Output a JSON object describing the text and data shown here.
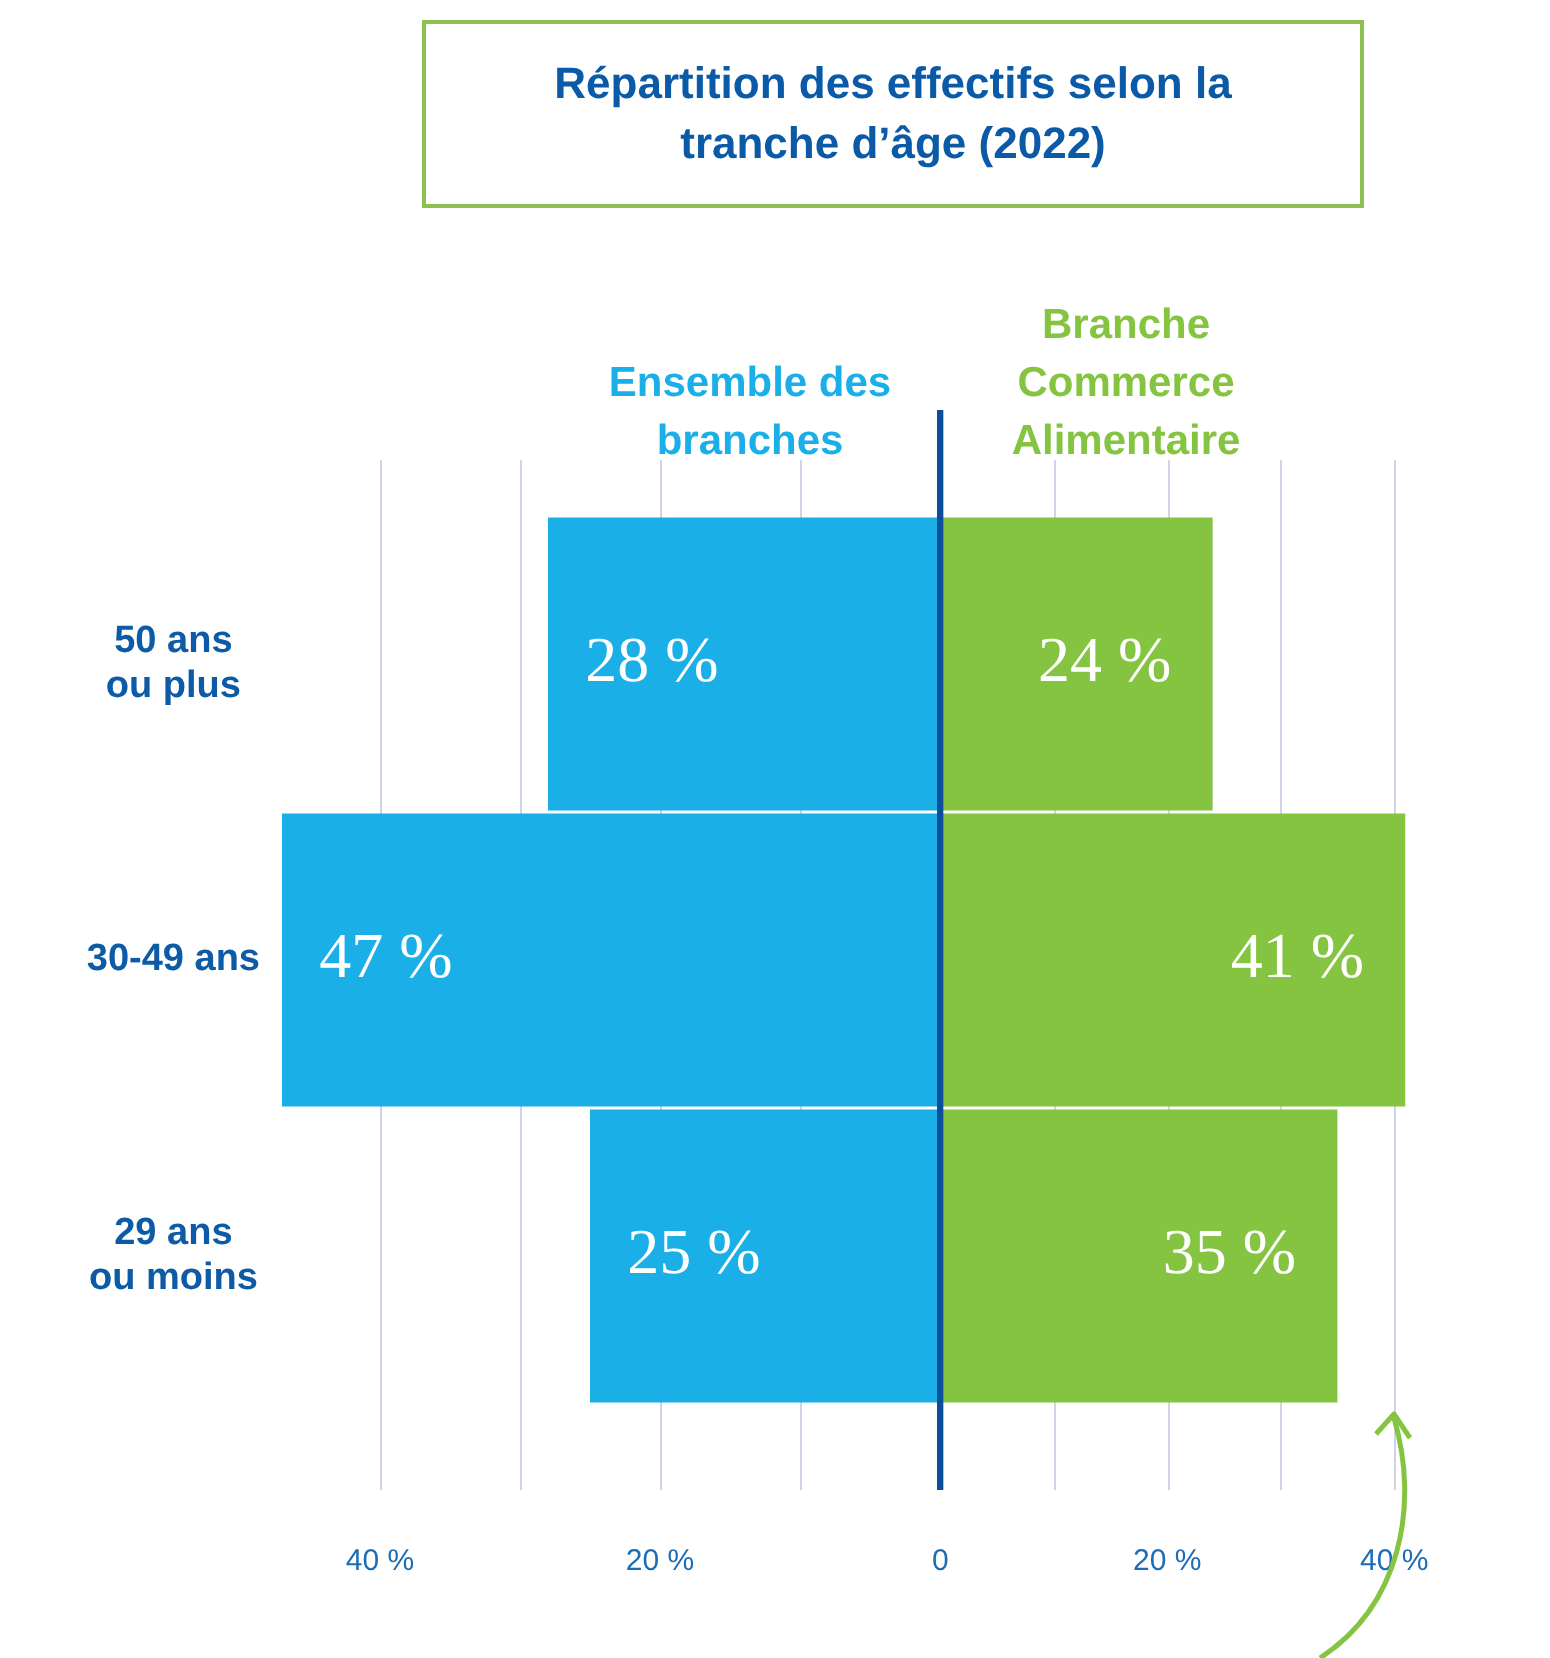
{
  "chart_data": [
    {
      "type": "bar",
      "orientation": "horizontal",
      "title": "Répartition des effectifs selon la tranche d’âge (2022)",
      "categories": [
        "50 ans ou plus",
        "30-49 ans",
        "29 ans ou moins"
      ],
      "series": [
        {
          "name": "Ensemble des branches",
          "color": "#1aafe6",
          "values": [
            28,
            47,
            25
          ],
          "value_labels": [
            "28 %",
            "47 %",
            "25 %"
          ]
        }
      ],
      "xlim": [
        47,
        0
      ],
      "xticks": [
        {
          "value": 10,
          "label": null
        },
        {
          "value": 20,
          "label": "20 %"
        },
        {
          "value": 30,
          "label": null
        },
        {
          "value": 40,
          "label": "40 %"
        }
      ],
      "grid": "x"
    },
    {
      "type": "bar",
      "orientation": "horizontal",
      "categories": [
        null,
        null,
        null
      ],
      "series": [
        {
          "name": "Branche Commerce Alimentaire",
          "color": "#84c441",
          "values": [
            24,
            41,
            35
          ],
          "value_labels": [
            "24 %",
            "41 %",
            "35 %"
          ]
        }
      ],
      "xlim": [
        0,
        41
      ],
      "xticks": [
        0,
        {
          "value": 10,
          "label": null
        },
        {
          "value": 20,
          "label": "20 %"
        },
        {
          "value": 30,
          "label": null
        },
        {
          "value": 40,
          "label": "40 %"
        }
      ],
      "grid": "x",
      "tick_labels": "x"
    }
  ]
}
